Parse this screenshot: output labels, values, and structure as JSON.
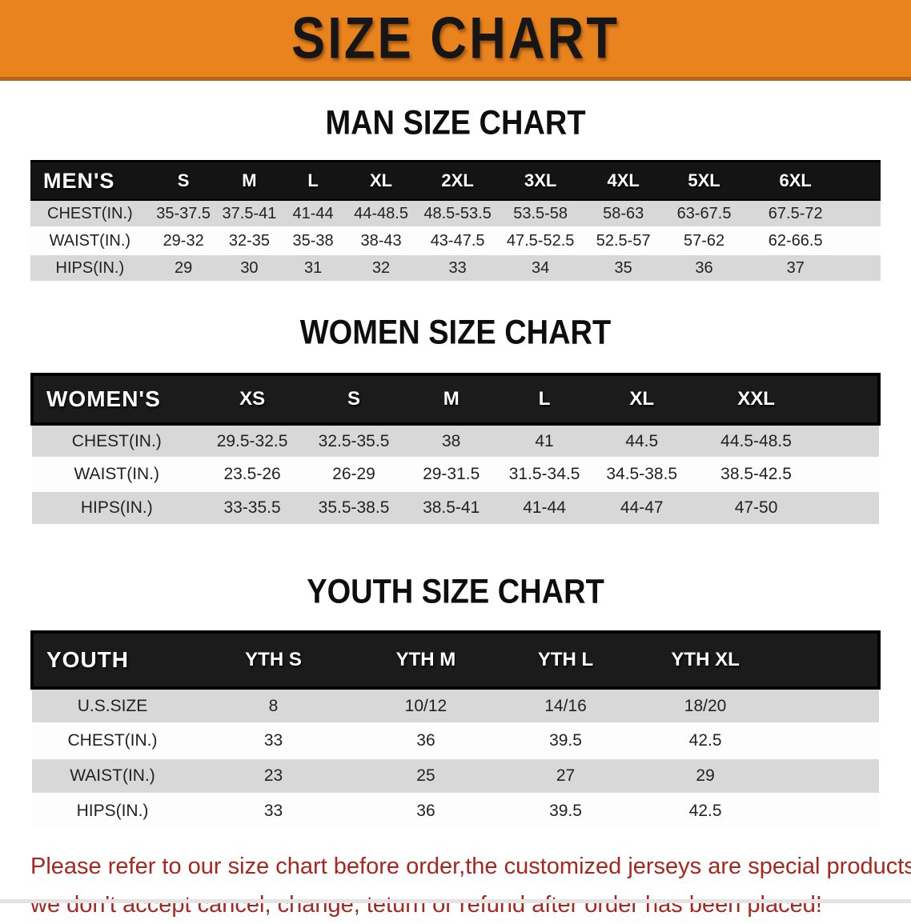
{
  "banner": {
    "title": "SIZE CHART"
  },
  "colors": {
    "banner_bg": "#e8831e",
    "banner_text": "#161616",
    "table_header_bg": "#141414",
    "table_header_text": "#ffffff",
    "row_alt_bg": "#d8d8d8",
    "body_text": "#222222",
    "disclaimer_text": "#a8261d"
  },
  "sections": [
    {
      "title": "MAN SIZE CHART",
      "table": {
        "header_label": "MEN'S",
        "columns": [
          "S",
          "M",
          "L",
          "XL",
          "2XL",
          "3XL",
          "4XL",
          "5XL",
          "6XL"
        ],
        "rows": [
          {
            "label": "CHEST(IN.)",
            "values": [
              "35-37.5",
              "37.5-41",
              "41-44",
              "44-48.5",
              "48.5-53.5",
              "53.5-58",
              "58-63",
              "63-67.5",
              "67.5-72"
            ]
          },
          {
            "label": "WAIST(IN.)",
            "values": [
              "29-32",
              "32-35",
              "35-38",
              "38-43",
              "43-47.5",
              "47.5-52.5",
              "52.5-57",
              "57-62",
              "62-66.5"
            ]
          },
          {
            "label": "HIPS(IN.)",
            "values": [
              "29",
              "30",
              "31",
              "32",
              "33",
              "34",
              "35",
              "36",
              "37"
            ]
          }
        ]
      }
    },
    {
      "title": "WOMEN SIZE CHART",
      "table": {
        "header_label": "WOMEN'S",
        "columns": [
          "XS",
          "S",
          "M",
          "L",
          "XL",
          "XXL"
        ],
        "rows": [
          {
            "label": "CHEST(IN.)",
            "values": [
              "29.5-32.5",
              "32.5-35.5",
              "38",
              "41",
              "44.5",
              "44.5-48.5"
            ]
          },
          {
            "label": "WAIST(IN.)",
            "values": [
              "23.5-26",
              "26-29",
              "29-31.5",
              "31.5-34.5",
              "34.5-38.5",
              "38.5-42.5"
            ]
          },
          {
            "label": "HIPS(IN.)",
            "values": [
              "33-35.5",
              "35.5-38.5",
              "38.5-41",
              "41-44",
              "44-47",
              "47-50"
            ]
          }
        ]
      }
    },
    {
      "title": "YOUTH SIZE CHART",
      "table": {
        "header_label": "YOUTH",
        "columns": [
          "YTH S",
          "YTH M",
          "YTH L",
          "YTH XL"
        ],
        "rows": [
          {
            "label": "U.S.SIZE",
            "values": [
              "8",
              "10/12",
              "14/16",
              "18/20"
            ]
          },
          {
            "label": "CHEST(IN.)",
            "values": [
              "33",
              "36",
              "39.5",
              "42.5"
            ]
          },
          {
            "label": "WAIST(IN.)",
            "values": [
              "23",
              "25",
              "27",
              "29"
            ]
          },
          {
            "label": "HIPS(IN.)",
            "values": [
              "33",
              "36",
              "39.5",
              "42.5"
            ]
          }
        ]
      }
    }
  ],
  "disclaimer": {
    "line1": "Please refer to our size chart before order,the customized jerseys are special products,",
    "line2": "we don't accept cancel, change, teturn or refund after order has been placed!"
  }
}
